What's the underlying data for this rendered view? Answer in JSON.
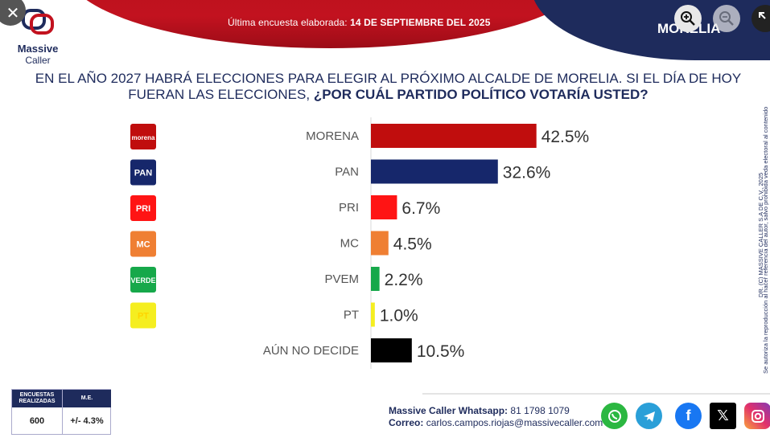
{
  "header": {
    "banner_prefix": "Última encuesta elaborada: ",
    "banner_date": "14 DE SEPTIEMBRE DEL 2025",
    "city": "MORELIA"
  },
  "brand": {
    "name_line1": "Massive",
    "name_line2": "Caller"
  },
  "question": {
    "part1": "EN EL AÑO 2027 HABRÁ ELECCIONES PARA ELEGIR AL PRÓXIMO ALCALDE DE MORELIA. SI EL DÍA DE HOY FUERAN LAS ELECCIONES, ",
    "part2": "¿POR CUÁL PARTIDO POLÍTICO VOTARÍA USTED?"
  },
  "side_note": {
    "line1": "Se autoriza la reproducción al hacer referencia del autor, salvo prohibida veda electoral al contenido",
    "line2": "DR. (C) MASSIVE CALLER S.A DE C.V., 2025"
  },
  "chart_data": {
    "type": "bar",
    "orientation": "horizontal",
    "categories": [
      "MORENA",
      "PAN",
      "PRI",
      "MC",
      "PVEM",
      "PT",
      "AÚN NO DECIDE"
    ],
    "values": [
      42.5,
      32.6,
      6.7,
      4.5,
      2.2,
      1.0,
      10.5
    ],
    "value_labels": [
      "42.5%",
      "32.6%",
      "6.7%",
      "4.5%",
      "2.2%",
      "1.0%",
      "10.5%"
    ],
    "colors": [
      "#c00d0d",
      "#16276b",
      "#ff1414",
      "#ef7f33",
      "#16a84a",
      "#f5ee20",
      "#000000"
    ],
    "icons": [
      "morena-logo-icon",
      "pan-logo-icon",
      "pri-logo-icon",
      "mc-logo-icon",
      "pvem-logo-icon",
      "pt-logo-icon",
      ""
    ],
    "icon_texts": [
      "morena",
      "PAN",
      "PRI",
      "MC",
      "VERDE",
      "PT",
      ""
    ],
    "xlim": [
      0,
      100
    ],
    "grid": false,
    "legend": "none"
  },
  "stats_table": {
    "headers": [
      "ENCUESTAS REALIZADAS",
      "M.E."
    ],
    "values": [
      "600",
      "+/- 4.3%"
    ]
  },
  "contact": {
    "whatsapp_label": "Massive Caller Whatsapp:",
    "whatsapp_value": "81 1798 1079",
    "email_label": "Correo:",
    "email_value": "carlos.campos.riojas@massivecaller.com"
  },
  "social_icons": [
    "whatsapp-icon",
    "telegram-icon",
    "facebook-icon",
    "x-icon",
    "instagram-icon"
  ],
  "colors": {
    "brand_red": "#b8101d",
    "brand_blue": "#1e2b5c"
  }
}
